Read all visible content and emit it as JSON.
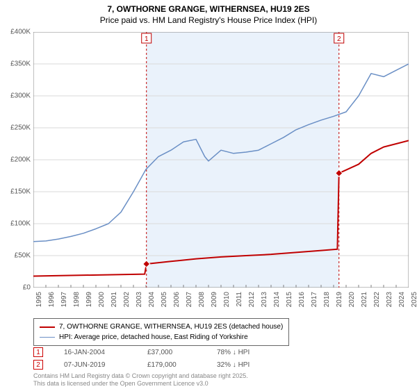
{
  "title_line1": "7, OWTHORNE GRANGE, WITHERNSEA, HU19 2ES",
  "title_line2": "Price paid vs. HM Land Registry's House Price Index (HPI)",
  "chart": {
    "type": "line",
    "background_color": "#ffffff",
    "plot_band_color": "#eaf2fb",
    "grid_color": "#d9d9d9",
    "axis_color": "#808080",
    "x_start_year": 1995,
    "x_end_year": 2025,
    "x_ticks": [
      "1995",
      "1996",
      "1997",
      "1998",
      "1999",
      "2000",
      "2001",
      "2002",
      "2003",
      "2004",
      "2005",
      "2006",
      "2007",
      "2008",
      "2009",
      "2010",
      "2011",
      "2012",
      "2013",
      "2014",
      "2015",
      "2016",
      "2017",
      "2018",
      "2019",
      "2020",
      "2021",
      "2022",
      "2023",
      "2024",
      "2025"
    ],
    "ylim": [
      0,
      400000
    ],
    "ytick_step": 50000,
    "y_ticks": [
      "£0",
      "£50K",
      "£100K",
      "£150K",
      "£200K",
      "£250K",
      "£300K",
      "£350K",
      "£400K"
    ],
    "series": [
      {
        "name": "price_paid",
        "color": "#c00000",
        "width": 2,
        "points": [
          [
            1995,
            18000
          ],
          [
            2003.9,
            21000
          ],
          [
            2004.04,
            37000
          ],
          [
            2006,
            41000
          ],
          [
            2008,
            45000
          ],
          [
            2010,
            48000
          ],
          [
            2012,
            50000
          ],
          [
            2014,
            52000
          ],
          [
            2016,
            55000
          ],
          [
            2018,
            58000
          ],
          [
            2019.3,
            60000
          ],
          [
            2019.43,
            179000
          ],
          [
            2020,
            184000
          ],
          [
            2021,
            193000
          ],
          [
            2022,
            210000
          ],
          [
            2023,
            220000
          ],
          [
            2024,
            225000
          ],
          [
            2025,
            230000
          ]
        ],
        "markers": [
          {
            "num": "1",
            "x": 2004.04,
            "y": 37000
          },
          {
            "num": "2",
            "x": 2019.43,
            "y": 179000
          }
        ]
      },
      {
        "name": "hpi",
        "color": "#6a8fc5",
        "width": 1.5,
        "points": [
          [
            1995,
            72000
          ],
          [
            1996,
            73000
          ],
          [
            1997,
            76000
          ],
          [
            1998,
            80000
          ],
          [
            1999,
            85000
          ],
          [
            2000,
            92000
          ],
          [
            2001,
            100000
          ],
          [
            2002,
            118000
          ],
          [
            2003,
            150000
          ],
          [
            2004,
            185000
          ],
          [
            2005,
            205000
          ],
          [
            2006,
            215000
          ],
          [
            2007,
            228000
          ],
          [
            2008,
            232000
          ],
          [
            2008.7,
            205000
          ],
          [
            2009,
            198000
          ],
          [
            2010,
            215000
          ],
          [
            2011,
            210000
          ],
          [
            2012,
            212000
          ],
          [
            2013,
            215000
          ],
          [
            2014,
            225000
          ],
          [
            2015,
            235000
          ],
          [
            2016,
            247000
          ],
          [
            2017,
            255000
          ],
          [
            2018,
            262000
          ],
          [
            2019,
            268000
          ],
          [
            2020,
            275000
          ],
          [
            2021,
            300000
          ],
          [
            2022,
            335000
          ],
          [
            2023,
            330000
          ],
          [
            2024,
            340000
          ],
          [
            2025,
            350000
          ]
        ]
      }
    ],
    "vlines": [
      {
        "x": 2004.04,
        "label": "1",
        "color": "#c00000"
      },
      {
        "x": 2019.43,
        "label": "2",
        "color": "#c00000"
      }
    ]
  },
  "legend": {
    "rows": [
      {
        "color": "#c00000",
        "width": 2,
        "text": "7, OWTHORNE GRANGE, WITHERNSEA, HU19 2ES (detached house)"
      },
      {
        "color": "#6a8fc5",
        "width": 1.5,
        "text": "HPI: Average price, detached house, East Riding of Yorkshire"
      }
    ]
  },
  "markers_table": {
    "rows": [
      {
        "num": "1",
        "date": "16-JAN-2004",
        "price": "£37,000",
        "delta": "78% ↓ HPI"
      },
      {
        "num": "2",
        "date": "07-JUN-2019",
        "price": "£179,000",
        "delta": "32% ↓ HPI"
      }
    ]
  },
  "footnote_line1": "Contains HM Land Registry data © Crown copyright and database right 2025.",
  "footnote_line2": "This data is licensed under the Open Government Licence v3.0"
}
